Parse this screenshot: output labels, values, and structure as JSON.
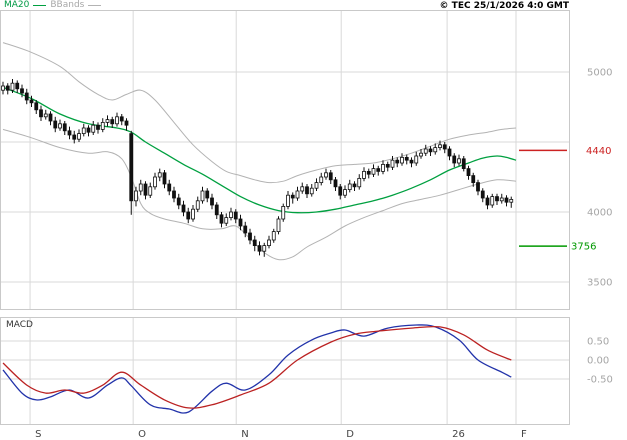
{
  "header": {
    "legend_ma20": "MA20",
    "legend_bbands": "BBands",
    "copyright": "© TEC 25/1/2026 4:0 GMT"
  },
  "chart_data": {
    "type": "candlestick",
    "title": "",
    "xlabel": "",
    "ylabel": "",
    "x_ticks": [
      {
        "day": 5.7,
        "label": "S"
      },
      {
        "day": 27.4,
        "label": "O"
      },
      {
        "day": 49.1,
        "label": "N"
      },
      {
        "day": 71.2,
        "label": "D"
      },
      {
        "day": 93.5,
        "label": "26"
      },
      {
        "day": 108,
        "label": "F"
      }
    ],
    "colors": {
      "grid": "#d9d9d9",
      "border": "#c9c9c9",
      "candle": "#111111",
      "ma20": "#00a040",
      "bbands": "#b3b3b3",
      "macd": "#2233aa",
      "signal": "#bb2222",
      "axis_text": "#a6a6a6",
      "month_text": "#444444",
      "marker_red": "#cc2222",
      "marker_green": "#009900"
    },
    "price_panel": {
      "ylim": [
        3300,
        5440
      ],
      "gridline_prices": [
        3500,
        4000,
        4500,
        5000
      ],
      "y_ticks": [
        {
          "price": 5000,
          "label": "5000"
        },
        {
          "price": 4000,
          "label": "4000"
        },
        {
          "price": 3500,
          "label": "3500"
        }
      ],
      "markers": [
        {
          "price": 4440,
          "label": "4440",
          "color": "#cc2222"
        },
        {
          "price": 3756,
          "label": "3756",
          "color": "#009900"
        }
      ],
      "candles": [
        [
          4870,
          4930,
          4840,
          4900
        ],
        [
          4900,
          4920,
          4840,
          4870
        ],
        [
          4870,
          4950,
          4850,
          4920
        ],
        [
          4920,
          4940,
          4850,
          4880
        ],
        [
          4880,
          4910,
          4820,
          4850
        ],
        [
          4850,
          4880,
          4770,
          4800
        ],
        [
          4800,
          4830,
          4750,
          4780
        ],
        [
          4780,
          4800,
          4700,
          4730
        ],
        [
          4730,
          4760,
          4650,
          4680
        ],
        [
          4680,
          4730,
          4660,
          4700
        ],
        [
          4700,
          4720,
          4620,
          4650
        ],
        [
          4650,
          4680,
          4570,
          4600
        ],
        [
          4600,
          4660,
          4580,
          4630
        ],
        [
          4630,
          4650,
          4550,
          4580
        ],
        [
          4580,
          4610,
          4520,
          4550
        ],
        [
          4550,
          4580,
          4490,
          4520
        ],
        [
          4520,
          4590,
          4500,
          4560
        ],
        [
          4560,
          4630,
          4540,
          4600
        ],
        [
          4600,
          4620,
          4540,
          4570
        ],
        [
          4570,
          4650,
          4550,
          4620
        ],
        [
          4620,
          4640,
          4560,
          4590
        ],
        [
          4590,
          4670,
          4570,
          4640
        ],
        [
          4640,
          4690,
          4610,
          4660
        ],
        [
          4660,
          4680,
          4600,
          4630
        ],
        [
          4630,
          4710,
          4610,
          4680
        ],
        [
          4680,
          4700,
          4620,
          4650
        ],
        [
          4650,
          4670,
          4580,
          4620
        ],
        [
          4560,
          4580,
          3980,
          4080
        ],
        [
          4080,
          4180,
          4040,
          4150
        ],
        [
          4150,
          4230,
          4120,
          4200
        ],
        [
          4200,
          4220,
          4090,
          4120
        ],
        [
          4120,
          4210,
          4100,
          4180
        ],
        [
          4180,
          4280,
          4160,
          4250
        ],
        [
          4250,
          4310,
          4220,
          4280
        ],
        [
          4280,
          4300,
          4170,
          4200
        ],
        [
          4200,
          4230,
          4120,
          4150
        ],
        [
          4150,
          4180,
          4070,
          4100
        ],
        [
          4100,
          4130,
          4020,
          4050
        ],
        [
          4050,
          4080,
          3970,
          4000
        ],
        [
          4000,
          4030,
          3920,
          3950
        ],
        [
          3950,
          4050,
          3930,
          4020
        ],
        [
          4020,
          4110,
          4000,
          4080
        ],
        [
          4080,
          4180,
          4060,
          4150
        ],
        [
          4150,
          4170,
          4070,
          4100
        ],
        [
          4100,
          4130,
          4020,
          4050
        ],
        [
          4050,
          4070,
          3950,
          3980
        ],
        [
          3980,
          4000,
          3890,
          3920
        ],
        [
          3920,
          3990,
          3900,
          3960
        ],
        [
          3960,
          4030,
          3940,
          4000
        ],
        [
          4000,
          4020,
          3920,
          3950
        ],
        [
          3950,
          3980,
          3870,
          3900
        ],
        [
          3900,
          3930,
          3820,
          3850
        ],
        [
          3850,
          3880,
          3770,
          3800
        ],
        [
          3800,
          3830,
          3720,
          3760
        ],
        [
          3760,
          3790,
          3690,
          3720
        ],
        [
          3720,
          3780,
          3680,
          3760
        ],
        [
          3760,
          3830,
          3740,
          3800
        ],
        [
          3800,
          3880,
          3780,
          3860
        ],
        [
          3860,
          3970,
          3840,
          3950
        ],
        [
          3950,
          4060,
          3930,
          4040
        ],
        [
          4040,
          4150,
          4020,
          4120
        ],
        [
          4120,
          4140,
          4060,
          4100
        ],
        [
          4100,
          4180,
          4080,
          4150
        ],
        [
          4150,
          4210,
          4130,
          4180
        ],
        [
          4180,
          4200,
          4100,
          4130
        ],
        [
          4130,
          4200,
          4110,
          4170
        ],
        [
          4170,
          4240,
          4150,
          4210
        ],
        [
          4210,
          4280,
          4190,
          4250
        ],
        [
          4250,
          4310,
          4230,
          4280
        ],
        [
          4280,
          4300,
          4200,
          4230
        ],
        [
          4230,
          4250,
          4150,
          4180
        ],
        [
          4180,
          4200,
          4090,
          4120
        ],
        [
          4120,
          4190,
          4100,
          4160
        ],
        [
          4160,
          4230,
          4140,
          4200
        ],
        [
          4200,
          4220,
          4150,
          4180
        ],
        [
          4180,
          4270,
          4160,
          4240
        ],
        [
          4240,
          4320,
          4220,
          4290
        ],
        [
          4290,
          4310,
          4240,
          4270
        ],
        [
          4270,
          4340,
          4250,
          4310
        ],
        [
          4310,
          4330,
          4260,
          4290
        ],
        [
          4290,
          4370,
          4270,
          4340
        ],
        [
          4340,
          4360,
          4290,
          4320
        ],
        [
          4320,
          4400,
          4300,
          4370
        ],
        [
          4370,
          4390,
          4320,
          4350
        ],
        [
          4350,
          4420,
          4330,
          4390
        ],
        [
          4390,
          4410,
          4340,
          4370
        ],
        [
          4370,
          4390,
          4320,
          4350
        ],
        [
          4350,
          4430,
          4330,
          4400
        ],
        [
          4400,
          4450,
          4380,
          4420
        ],
        [
          4420,
          4480,
          4400,
          4450
        ],
        [
          4450,
          4470,
          4400,
          4430
        ],
        [
          4430,
          4490,
          4410,
          4460
        ],
        [
          4460,
          4510,
          4440,
          4480
        ],
        [
          4480,
          4500,
          4420,
          4450
        ],
        [
          4450,
          4470,
          4370,
          4400
        ],
        [
          4400,
          4420,
          4320,
          4350
        ],
        [
          4350,
          4410,
          4330,
          4380
        ],
        [
          4380,
          4400,
          4290,
          4310
        ],
        [
          4310,
          4330,
          4230,
          4260
        ],
        [
          4260,
          4280,
          4180,
          4210
        ],
        [
          4210,
          4230,
          4120,
          4150
        ],
        [
          4150,
          4170,
          4070,
          4100
        ],
        [
          4100,
          4120,
          4020,
          4050
        ],
        [
          4050,
          4130,
          4030,
          4110
        ],
        [
          4110,
          4130,
          4050,
          4080
        ],
        [
          4080,
          4130,
          4060,
          4100
        ],
        [
          4100,
          4120,
          4040,
          4070
        ],
        [
          4070,
          4110,
          4030,
          4090
        ]
      ],
      "ma20": [
        [
          0,
          4890
        ],
        [
          6,
          4810
        ],
        [
          12,
          4700
        ],
        [
          18,
          4630
        ],
        [
          24,
          4600
        ],
        [
          27,
          4570
        ],
        [
          30,
          4500
        ],
        [
          34,
          4420
        ],
        [
          38,
          4340
        ],
        [
          42,
          4270
        ],
        [
          46,
          4190
        ],
        [
          50,
          4110
        ],
        [
          54,
          4050
        ],
        [
          58,
          4010
        ],
        [
          62,
          3995
        ],
        [
          66,
          4000
        ],
        [
          70,
          4020
        ],
        [
          74,
          4050
        ],
        [
          78,
          4080
        ],
        [
          82,
          4120
        ],
        [
          86,
          4170
        ],
        [
          90,
          4230
        ],
        [
          94,
          4300
        ],
        [
          98,
          4350
        ],
        [
          101,
          4385
        ],
        [
          104,
          4400
        ],
        [
          106,
          4390
        ],
        [
          108,
          4370
        ]
      ],
      "bb_upper": [
        [
          0,
          5210
        ],
        [
          6,
          5140
        ],
        [
          12,
          5040
        ],
        [
          16,
          4930
        ],
        [
          20,
          4840
        ],
        [
          23,
          4800
        ],
        [
          26,
          4840
        ],
        [
          29,
          4870
        ],
        [
          32,
          4800
        ],
        [
          36,
          4640
        ],
        [
          40,
          4480
        ],
        [
          44,
          4360
        ],
        [
          47,
          4290
        ],
        [
          50,
          4260
        ],
        [
          53,
          4230
        ],
        [
          56,
          4210
        ],
        [
          59,
          4220
        ],
        [
          62,
          4260
        ],
        [
          66,
          4300
        ],
        [
          70,
          4330
        ],
        [
          74,
          4340
        ],
        [
          78,
          4350
        ],
        [
          82,
          4380
        ],
        [
          86,
          4420
        ],
        [
          90,
          4470
        ],
        [
          94,
          4520
        ],
        [
          98,
          4550
        ],
        [
          102,
          4570
        ],
        [
          105,
          4590
        ],
        [
          108,
          4600
        ]
      ],
      "bb_lower": [
        [
          0,
          4590
        ],
        [
          6,
          4530
        ],
        [
          12,
          4460
        ],
        [
          18,
          4420
        ],
        [
          22,
          4430
        ],
        [
          25,
          4380
        ],
        [
          27,
          4250
        ],
        [
          29,
          4060
        ],
        [
          31,
          3990
        ],
        [
          34,
          3950
        ],
        [
          38,
          3920
        ],
        [
          42,
          3880
        ],
        [
          46,
          3880
        ],
        [
          49,
          3900
        ],
        [
          52,
          3810
        ],
        [
          55,
          3710
        ],
        [
          58,
          3660
        ],
        [
          61,
          3680
        ],
        [
          64,
          3750
        ],
        [
          68,
          3820
        ],
        [
          72,
          3900
        ],
        [
          76,
          3960
        ],
        [
          80,
          4010
        ],
        [
          84,
          4060
        ],
        [
          88,
          4090
        ],
        [
          92,
          4120
        ],
        [
          96,
          4160
        ],
        [
          100,
          4200
        ],
        [
          104,
          4230
        ],
        [
          108,
          4220
        ]
      ]
    },
    "macd_panel": {
      "label": "MACD",
      "ylim": [
        -1.75,
        1.1
      ],
      "y_ticks": [
        {
          "value": 0.5,
          "label": "0.50"
        },
        {
          "value": 0,
          "label": "0.00"
        },
        {
          "value": -0.5,
          "label": "-0.50"
        }
      ],
      "macd": [
        [
          0,
          -0.26
        ],
        [
          4,
          -0.87
        ],
        [
          7,
          -1.05
        ],
        [
          10,
          -0.97
        ],
        [
          14,
          -0.79
        ],
        [
          18,
          -1.0
        ],
        [
          22,
          -0.66
        ],
        [
          25,
          -0.47
        ],
        [
          27,
          -0.68
        ],
        [
          31,
          -1.18
        ],
        [
          35,
          -1.29
        ],
        [
          39,
          -1.37
        ],
        [
          44,
          -0.82
        ],
        [
          47,
          -0.61
        ],
        [
          51,
          -0.79
        ],
        [
          56,
          -0.39
        ],
        [
          60,
          0.13
        ],
        [
          65,
          0.53
        ],
        [
          69,
          0.71
        ],
        [
          72,
          0.79
        ],
        [
          76,
          0.63
        ],
        [
          81,
          0.84
        ],
        [
          87,
          0.92
        ],
        [
          91,
          0.87
        ],
        [
          96,
          0.53
        ],
        [
          100,
          0.0
        ],
        [
          105,
          -0.32
        ],
        [
          107,
          -0.45
        ]
      ],
      "signal": [
        [
          0,
          -0.08
        ],
        [
          5,
          -0.66
        ],
        [
          9,
          -0.87
        ],
        [
          13,
          -0.79
        ],
        [
          17,
          -0.87
        ],
        [
          21,
          -0.66
        ],
        [
          25,
          -0.32
        ],
        [
          29,
          -0.66
        ],
        [
          34,
          -1.05
        ],
        [
          39,
          -1.26
        ],
        [
          44,
          -1.18
        ],
        [
          50,
          -0.92
        ],
        [
          56,
          -0.61
        ],
        [
          62,
          0.0
        ],
        [
          69,
          0.47
        ],
        [
          74,
          0.68
        ],
        [
          79,
          0.76
        ],
        [
          86,
          0.84
        ],
        [
          92,
          0.87
        ],
        [
          97,
          0.66
        ],
        [
          102,
          0.26
        ],
        [
          107,
          0.0
        ]
      ]
    }
  }
}
